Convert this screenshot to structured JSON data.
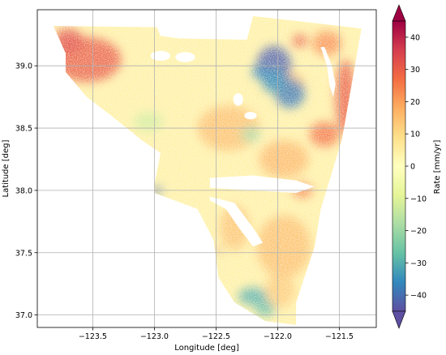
{
  "chart_data": {
    "type": "heatmap",
    "xlabel": "Longitude [deg]",
    "ylabel": "Latitude [deg]",
    "xlim": [
      -123.95,
      -121.2
    ],
    "ylim": [
      36.9,
      39.45
    ],
    "xticks": [
      -123.5,
      -123.0,
      -122.5,
      -122.0,
      -121.5
    ],
    "xtick_labels": [
      "−123.5",
      "−123.0",
      "−122.5",
      "−122.0",
      "−121.5"
    ],
    "yticks": [
      37.0,
      37.5,
      38.0,
      38.5,
      39.0
    ],
    "ytick_labels": [
      "37.0",
      "37.5",
      "38.0",
      "38.5",
      "39.0"
    ],
    "grid": true,
    "colormap": "Spectral_r",
    "colorbar": {
      "label": "Rate [mm/yr]",
      "range": [
        -45,
        45
      ],
      "extend": "both",
      "ticks": [
        -40,
        -30,
        -20,
        -10,
        0,
        10,
        20,
        30,
        40
      ],
      "tick_labels": [
        "−40",
        "−30",
        "−20",
        "−10",
        "0",
        "10",
        "20",
        "30",
        "40"
      ],
      "colors": [
        "#5e4fa2",
        "#3288bd",
        "#66c2a5",
        "#abdda4",
        "#e6f598",
        "#ffffbf",
        "#fee08b",
        "#fdae61",
        "#f46d43",
        "#d53e4f",
        "#9e0142"
      ]
    },
    "coverage_outline": [
      [
        -123.82,
        39.32
      ],
      [
        -122.98,
        39.31
      ],
      [
        -122.95,
        39.24
      ],
      [
        -122.8,
        39.22
      ],
      [
        -122.25,
        39.21
      ],
      [
        -122.2,
        39.4
      ],
      [
        -121.32,
        39.3
      ],
      [
        -121.48,
        38.4
      ],
      [
        -121.65,
        37.85
      ],
      [
        -121.7,
        37.55
      ],
      [
        -121.85,
        37.1
      ],
      [
        -121.85,
        36.92
      ],
      [
        -122.1,
        36.95
      ],
      [
        -122.35,
        37.1
      ],
      [
        -122.48,
        37.3
      ],
      [
        -122.52,
        37.6
      ],
      [
        -122.65,
        37.85
      ],
      [
        -123.0,
        37.98
      ],
      [
        -123.0,
        38.05
      ],
      [
        -122.95,
        38.3
      ],
      [
        -123.1,
        38.4
      ],
      [
        -123.35,
        38.6
      ],
      [
        -123.55,
        38.75
      ],
      [
        -123.72,
        38.95
      ],
      [
        -123.72,
        39.1
      ],
      [
        -123.82,
        39.32
      ]
    ],
    "anomalies": [
      {
        "lon": -123.55,
        "lat": 39.05,
        "rx": 0.28,
        "ry": 0.18,
        "rate": 30
      },
      {
        "lon": -123.7,
        "lat": 39.2,
        "rx": 0.12,
        "ry": 0.1,
        "rate": 32
      },
      {
        "lon": -121.82,
        "lat": 39.2,
        "rx": 0.06,
        "ry": 0.05,
        "rate": 30
      },
      {
        "lon": -121.6,
        "lat": 39.18,
        "rx": 0.12,
        "ry": 0.1,
        "rate": 22
      },
      {
        "lon": -121.45,
        "lat": 38.75,
        "rx": 0.08,
        "ry": 0.3,
        "rate": 30
      },
      {
        "lon": -121.62,
        "lat": 38.45,
        "rx": 0.12,
        "ry": 0.1,
        "rate": 26
      },
      {
        "lon": -121.9,
        "lat": 38.85,
        "rx": 0.12,
        "ry": 0.1,
        "rate": 14
      },
      {
        "lon": -122.4,
        "lat": 38.5,
        "rx": 0.25,
        "ry": 0.18,
        "rate": 15
      },
      {
        "lon": -121.95,
        "lat": 38.25,
        "rx": 0.2,
        "ry": 0.15,
        "rate": 16
      },
      {
        "lon": -122.35,
        "lat": 37.7,
        "rx": 0.12,
        "ry": 0.18,
        "rate": 14
      },
      {
        "lon": -121.95,
        "lat": 37.55,
        "rx": 0.22,
        "ry": 0.25,
        "rate": 15
      },
      {
        "lon": -121.98,
        "lat": 37.2,
        "rx": 0.12,
        "ry": 0.14,
        "rate": 13
      },
      {
        "lon": -121.8,
        "lat": 38.0,
        "rx": 0.08,
        "ry": 0.06,
        "rate": 24
      },
      {
        "lon": -122.03,
        "lat": 39.0,
        "rx": 0.14,
        "ry": 0.16,
        "rate": -42
      },
      {
        "lon": -121.9,
        "lat": 38.78,
        "rx": 0.12,
        "ry": 0.12,
        "rate": -38
      },
      {
        "lon": -122.03,
        "lat": 38.88,
        "rx": 0.1,
        "ry": 0.1,
        "rate": -34
      },
      {
        "lon": -122.15,
        "lat": 38.95,
        "rx": 0.06,
        "ry": 0.05,
        "rate": -36
      },
      {
        "lon": -122.22,
        "lat": 38.45,
        "rx": 0.08,
        "ry": 0.06,
        "rate": -18
      },
      {
        "lon": -123.05,
        "lat": 38.55,
        "rx": 0.12,
        "ry": 0.08,
        "rate": -12
      },
      {
        "lon": -122.6,
        "lat": 37.4,
        "rx": 0.06,
        "ry": 0.1,
        "rate": -22
      },
      {
        "lon": -122.2,
        "lat": 37.15,
        "rx": 0.12,
        "ry": 0.07,
        "rate": -30
      },
      {
        "lon": -122.1,
        "lat": 37.05,
        "rx": 0.08,
        "ry": 0.06,
        "rate": -28
      },
      {
        "lon": -122.98,
        "lat": 38.0,
        "rx": 0.04,
        "ry": 0.03,
        "rate": -40
      },
      {
        "lon": -122.48,
        "lat": 37.52,
        "rx": 0.02,
        "ry": 0.02,
        "rate": 42
      }
    ],
    "no_data_areas": [
      {
        "type": "ellipse",
        "lon": -122.95,
        "lat": 39.08,
        "rx": 0.08,
        "ry": 0.04
      },
      {
        "type": "ellipse",
        "lon": -122.75,
        "lat": 39.07,
        "rx": 0.08,
        "ry": 0.04
      },
      {
        "type": "ellipse",
        "lon": -122.32,
        "lat": 38.73,
        "rx": 0.04,
        "ry": 0.05
      },
      {
        "type": "ellipse",
        "lon": -122.22,
        "lat": 38.6,
        "rx": 0.05,
        "ry": 0.03
      },
      {
        "type": "polygon",
        "points": [
          [
            -122.55,
            38.1
          ],
          [
            -122.2,
            38.12
          ],
          [
            -121.85,
            38.08
          ],
          [
            -121.7,
            38.03
          ],
          [
            -121.85,
            37.98
          ],
          [
            -122.2,
            38.0
          ],
          [
            -122.55,
            38.02
          ]
        ]
      },
      {
        "type": "polygon",
        "points": [
          [
            -122.55,
            37.95
          ],
          [
            -122.35,
            37.9
          ],
          [
            -122.2,
            37.7
          ],
          [
            -122.12,
            37.58
          ],
          [
            -122.2,
            37.55
          ],
          [
            -122.3,
            37.68
          ],
          [
            -122.42,
            37.85
          ],
          [
            -122.55,
            37.92
          ]
        ]
      },
      {
        "type": "polygon",
        "points": [
          [
            -121.65,
            39.15
          ],
          [
            -121.6,
            39.0
          ],
          [
            -121.58,
            38.85
          ],
          [
            -121.55,
            38.75
          ],
          [
            -121.53,
            38.85
          ],
          [
            -121.56,
            39.0
          ],
          [
            -121.62,
            39.15
          ]
        ]
      }
    ]
  }
}
